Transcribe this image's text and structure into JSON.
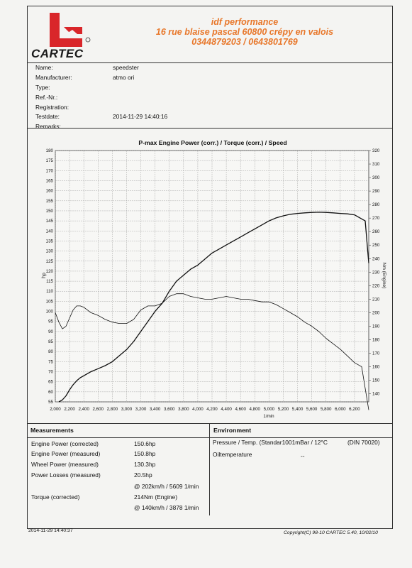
{
  "header": {
    "logo_text": "CARTEC",
    "company": "idf performance",
    "address": "16 rue blaise pascal 60800 crépy en valois",
    "phones": "0344879203 / 0643801769"
  },
  "info": [
    {
      "label": "Name:",
      "value": "speedster"
    },
    {
      "label": "Manufacturer:",
      "value": "atmo ori"
    },
    {
      "label": "Type:",
      "value": ""
    },
    {
      "label": "Ref.-Nr.:",
      "value": ""
    },
    {
      "label": "Registration:",
      "value": ""
    },
    {
      "label": "Testdate:",
      "value": "2014-11-29 14:40:16"
    },
    {
      "label": "Remarks:",
      "value": ""
    }
  ],
  "chart_data": {
    "type": "line",
    "title": "P-max Engine Power (corr.) / Torque (corr.) / Speed",
    "xlabel": "1/min",
    "ylabel_left": "hp",
    "ylabel_right": "Nm (Engine)",
    "xlim": [
      2000,
      6400
    ],
    "xticks": [
      "2,000",
      "2,200",
      "2,400",
      "2,600",
      "2,800",
      "3,000",
      "3,200",
      "3,400",
      "3,600",
      "3,800",
      "4,000",
      "4,200",
      "4,400",
      "4,600",
      "4,800",
      "5,000",
      "5,200",
      "5,400",
      "5,600",
      "5,800",
      "6,000",
      "6,200"
    ],
    "ylim_left": [
      55,
      180
    ],
    "yticks_left": [
      180,
      175,
      170,
      165,
      160,
      155,
      150,
      145,
      140,
      135,
      130,
      125,
      120,
      115,
      110,
      105,
      100,
      95,
      90,
      85,
      80,
      75,
      70,
      65,
      60,
      55
    ],
    "ylim_right": [
      134,
      320
    ],
    "yticks_right": [
      320,
      310,
      300,
      290,
      280,
      270,
      260,
      250,
      240,
      230,
      220,
      210,
      200,
      190,
      180,
      170,
      160,
      150,
      140
    ],
    "grid": true,
    "series": [
      {
        "axis": "left",
        "x": [
          2050,
          2100,
          2150,
          2200,
          2250,
          2300,
          2350,
          2400,
          2500,
          2600,
          2700,
          2800,
          2900,
          3000,
          3100,
          3200,
          3300,
          3400,
          3500,
          3600,
          3700,
          3800,
          3900,
          4000,
          4100,
          4200,
          4300,
          4400,
          4500,
          4600,
          4700,
          4800,
          4900,
          5000,
          5100,
          5200,
          5300,
          5400,
          5500,
          5600,
          5700,
          5800,
          5900,
          6000,
          6100,
          6200,
          6300,
          6350,
          6400
        ],
        "values": [
          55,
          56,
          58,
          61,
          63.5,
          65.5,
          67,
          68,
          70,
          71.5,
          73,
          75,
          78,
          81,
          85,
          90,
          95,
          100,
          104,
          110,
          115,
          118,
          121,
          123,
          126,
          129,
          131,
          133,
          135,
          137,
          139,
          141,
          143,
          145,
          146.5,
          147.5,
          148.3,
          148.7,
          149,
          149.2,
          149.3,
          149.2,
          149,
          148.7,
          148.5,
          148,
          146,
          145,
          124
        ]
      },
      {
        "axis": "right",
        "x": [
          2000,
          2050,
          2100,
          2150,
          2200,
          2250,
          2300,
          2350,
          2400,
          2450,
          2500,
          2550,
          2600,
          2700,
          2800,
          2900,
          3000,
          3100,
          3200,
          3300,
          3400,
          3500,
          3600,
          3700,
          3800,
          3900,
          4000,
          4100,
          4200,
          4300,
          4400,
          4500,
          4600,
          4700,
          4800,
          4900,
          5000,
          5100,
          5200,
          5300,
          5400,
          5500,
          5600,
          5700,
          5800,
          5900,
          6000,
          6100,
          6200,
          6300,
          6400
        ],
        "values": [
          200,
          193,
          188,
          190,
          196,
          202,
          205,
          205,
          204,
          202,
          200,
          199,
          198,
          195,
          193,
          192,
          192,
          195,
          202,
          205,
          205,
          207,
          212,
          214,
          214,
          212,
          211,
          210,
          210,
          211,
          212,
          211,
          210,
          210,
          209,
          208,
          208,
          206,
          203,
          200,
          197,
          193,
          190,
          186,
          181,
          177,
          173,
          168,
          163,
          160,
          128
        ]
      }
    ]
  },
  "measurements": {
    "title": "Measurements",
    "rows": [
      {
        "label": "Engine Power (corrected)",
        "value": "150.6hp"
      },
      {
        "label": "Engine Power (measured)",
        "value": "150.8hp"
      },
      {
        "label": "Wheel Power (measured)",
        "value": "130.3hp"
      },
      {
        "label": "Power Losses (measured)",
        "value": "20.5hp"
      },
      {
        "label": "",
        "value": "@ 202km/h / 5609 1/min"
      },
      {
        "label": "Torque (corrected)",
        "value": "214Nm (Engine)"
      },
      {
        "label": "",
        "value": "@ 140km/h / 3878 1/min"
      }
    ]
  },
  "environment": {
    "title": "Environment",
    "rows": [
      {
        "label": "Pressure / Temp. (Standar1001mBar / 12°C",
        "value": "(DIN 70020)"
      },
      {
        "label": "Oiltemperature",
        "value": "--"
      }
    ]
  },
  "footer": {
    "timestamp": "2014-11-29 14:40:37",
    "copyright": "Copyright(C) 98-10 CARTEC 5.40, 10/02/10"
  }
}
